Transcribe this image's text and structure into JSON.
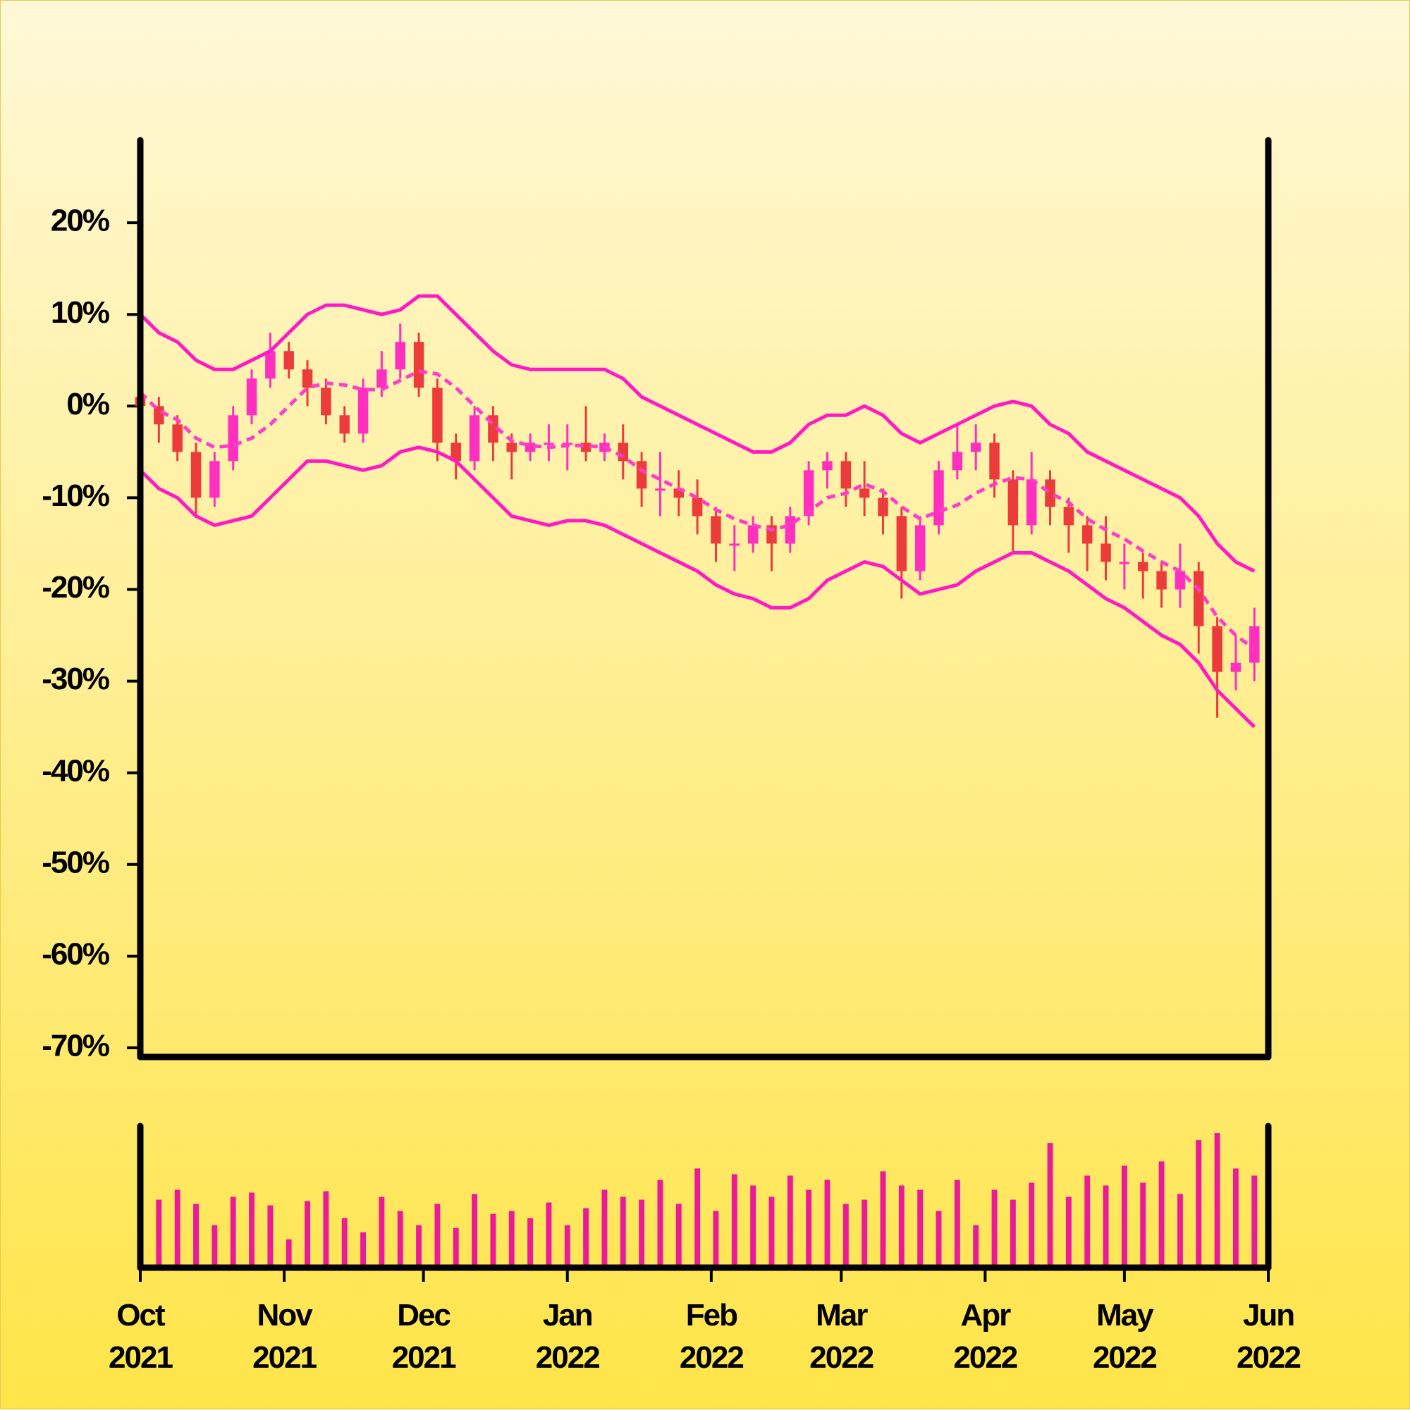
{
  "chart_data": [
    {
      "type": "candlestick",
      "x": [
        0,
        4,
        8,
        12,
        16,
        20,
        24,
        28,
        32,
        36,
        40,
        44,
        48,
        52,
        56,
        60,
        64,
        68,
        72,
        76,
        80,
        84,
        88,
        92,
        96,
        100,
        104,
        108,
        112,
        116,
        120,
        124,
        128,
        132,
        136,
        140,
        144,
        148,
        152,
        156,
        160,
        164,
        168,
        172,
        176,
        180,
        184,
        188,
        192,
        196,
        200,
        204,
        208,
        212,
        216,
        220,
        224,
        228,
        232,
        236,
        240
      ],
      "open": [
        1,
        0,
        -2,
        -5,
        -10,
        -6,
        -1,
        3,
        6,
        4,
        2,
        -1,
        -3,
        2,
        4,
        7,
        2,
        -4,
        -6,
        -1,
        -4,
        -5,
        -4,
        -4,
        -4,
        -5,
        -4,
        -6,
        -9,
        -9,
        -10,
        -12,
        -15,
        -15,
        -13,
        -15,
        -12,
        -7,
        -6,
        -9,
        -10,
        -12,
        -18,
        -13,
        -7,
        -5,
        -4,
        -8,
        -13,
        -8,
        -11,
        -13,
        -15,
        -17,
        -17,
        -18,
        -20,
        -18,
        -24,
        -29,
        -28
      ],
      "high": [
        2,
        1,
        -1,
        -4,
        -5,
        0,
        4,
        8,
        7,
        5,
        3,
        0,
        3,
        6,
        9,
        8,
        3,
        -3,
        0,
        0,
        -3,
        -3,
        -2,
        -2,
        0,
        -3,
        -2,
        -5,
        -5,
        -7,
        -8,
        -11,
        -13,
        -12,
        -12,
        -11,
        -6,
        -5,
        -5,
        -6,
        -9,
        -11,
        -12,
        -6,
        -2,
        -2,
        -3,
        -7,
        -5,
        -7,
        -10,
        -12,
        -12,
        -15,
        -16,
        -17,
        -15,
        -17,
        -23,
        -25,
        -22
      ],
      "low": [
        -1.5,
        -4,
        -6,
        -12,
        -11,
        -7,
        -2,
        2,
        3,
        0,
        -2,
        -4,
        -4,
        1,
        3,
        1,
        -6,
        -8,
        -7,
        -6,
        -8,
        -6,
        -6,
        -7,
        -6,
        -6,
        -8,
        -11,
        -12,
        -12,
        -14,
        -17,
        -18,
        -16,
        -18,
        -16,
        -13,
        -9,
        -11,
        -12,
        -14,
        -21,
        -19,
        -14,
        -8,
        -7,
        -10,
        -16,
        -14,
        -13,
        -16,
        -18,
        -19,
        -20,
        -21,
        -22,
        -22,
        -27,
        -34,
        -31,
        -30
      ],
      "close": [
        0,
        -2,
        -5,
        -10,
        -6,
        -1,
        3,
        6,
        4,
        2,
        -1,
        -3,
        2,
        4,
        7,
        2,
        -4,
        -6,
        -1,
        -4,
        -5,
        -4,
        -4,
        -4,
        -5,
        -4,
        -6,
        -9,
        -9,
        -10,
        -12,
        -15,
        -15,
        -13,
        -15,
        -12,
        -7,
        -6,
        -9,
        -10,
        -12,
        -18,
        -13,
        -7,
        -5,
        -4,
        -8,
        -13,
        -8,
        -11,
        -13,
        -15,
        -17,
        -17,
        -18,
        -20,
        -18,
        -24,
        -29,
        -28,
        -24
      ],
      "up_color": "#ff2fc0",
      "down_color": "#ec3b3b",
      "series": [
        {
          "color": "#ff1ac6",
          "style": "solid",
          "values": [
            10,
            8,
            7,
            5,
            4,
            4,
            5,
            6,
            8,
            10,
            11,
            11,
            10.5,
            10,
            10.5,
            12,
            12,
            10,
            8,
            6,
            4.5,
            4,
            4,
            4,
            4,
            4,
            3,
            1,
            0,
            -1,
            -2,
            -3,
            -4,
            -5,
            -5,
            -4,
            -2,
            -1,
            -1,
            0,
            -1,
            -3,
            -4,
            -3,
            -2,
            -1,
            0,
            0.5,
            0,
            -2,
            -3,
            -5,
            -6,
            -7,
            -8,
            -9,
            -10,
            -12,
            -15,
            -17,
            -18
          ]
        },
        {
          "color": "#ff3ccc",
          "style": "dashed",
          "values": [
            1.5,
            -0.5,
            -1.5,
            -3.5,
            -4.5,
            -4.3,
            -3.5,
            -2,
            0,
            2,
            2.5,
            2.3,
            1.8,
            1.8,
            2.8,
            3.8,
            3.5,
            2,
            0,
            -2,
            -3.8,
            -4.3,
            -4.5,
            -4.3,
            -4.3,
            -4.5,
            -5.5,
            -7,
            -8,
            -9,
            -10,
            -11.3,
            -12.3,
            -13,
            -13.5,
            -13,
            -11.5,
            -10,
            -9.5,
            -8.5,
            -9.3,
            -11,
            -12.3,
            -11.5,
            -10.8,
            -9.5,
            -8.5,
            -7.8,
            -8,
            -9.5,
            -10.5,
            -12.3,
            -13.5,
            -14.5,
            -15.8,
            -17,
            -18,
            -20,
            -23,
            -25,
            -26.5
          ]
        },
        {
          "color": "#ff1ac6",
          "style": "solid",
          "values": [
            -7,
            -9,
            -10,
            -12,
            -13,
            -12.5,
            -12,
            -10,
            -8,
            -6,
            -6,
            -6.5,
            -7,
            -6.5,
            -5,
            -4.5,
            -5,
            -6,
            -8,
            -10,
            -12,
            -12.5,
            -13,
            -12.5,
            -12.5,
            -13,
            -14,
            -15,
            -16,
            -17,
            -18,
            -19.5,
            -20.5,
            -21,
            -22,
            -22,
            -21,
            -19,
            -18,
            -17,
            -17.5,
            -19,
            -20.5,
            -20,
            -19.5,
            -18,
            -17,
            -16,
            -16,
            -17,
            -18,
            -19.5,
            -21,
            -22,
            -23.5,
            -25,
            -26,
            -28,
            -31,
            -33,
            -35
          ]
        }
      ],
      "xlim": [
        0,
        243
      ],
      "ylim": [
        -71,
        29
      ],
      "yticks": [
        {
          "value": -70,
          "label": "-70%"
        },
        {
          "value": -60,
          "label": "-60%"
        },
        {
          "value": -50,
          "label": "-50%"
        },
        {
          "value": -40,
          "label": "-40%"
        },
        {
          "value": -30,
          "label": "-30%"
        },
        {
          "value": -20,
          "label": "-20%"
        },
        {
          "value": -10,
          "label": "-10%"
        },
        {
          "value": 0,
          "label": "0%"
        },
        {
          "value": 10,
          "label": "10%"
        },
        {
          "value": 20,
          "label": "20%"
        }
      ]
    },
    {
      "type": "bar",
      "x": [
        0,
        4,
        8,
        12,
        16,
        20,
        24,
        28,
        32,
        36,
        40,
        44,
        48,
        52,
        56,
        60,
        64,
        68,
        72,
        76,
        80,
        84,
        88,
        92,
        96,
        100,
        104,
        108,
        112,
        116,
        120,
        124,
        128,
        132,
        136,
        140,
        144,
        148,
        152,
        156,
        160,
        164,
        168,
        172,
        176,
        180,
        184,
        188,
        192,
        196,
        200,
        204,
        208,
        212,
        216,
        220,
        224,
        228,
        232,
        236,
        240
      ],
      "values": [
        52,
        48,
        55,
        45,
        30,
        50,
        53,
        44,
        20,
        47,
        54,
        35,
        25,
        50,
        40,
        30,
        45,
        28,
        52,
        38,
        40,
        35,
        46,
        30,
        42,
        55,
        50,
        48,
        62,
        45,
        70,
        40,
        66,
        58,
        50,
        65,
        55,
        62,
        45,
        48,
        68,
        58,
        55,
        40,
        62,
        30,
        55,
        48,
        60,
        88,
        50,
        65,
        58,
        72,
        60,
        75,
        52,
        90,
        95,
        70,
        65
      ],
      "color": "#ea1a98",
      "xlim": [
        0,
        243
      ],
      "ylim": [
        0,
        100
      ],
      "xticks": [
        {
          "value": 0,
          "label": "Oct 2021"
        },
        {
          "value": 31,
          "label": "Nov 2021"
        },
        {
          "value": 61,
          "label": "Dec 2021"
        },
        {
          "value": 92,
          "label": "Jan 2022"
        },
        {
          "value": 123,
          "label": "Feb 2022"
        },
        {
          "value": 151,
          "label": "Mar 2022"
        },
        {
          "value": 182,
          "label": "Apr 2022"
        },
        {
          "value": 212,
          "label": "May 2022"
        },
        {
          "value": 243,
          "label": "Jun 2022"
        }
      ]
    }
  ]
}
